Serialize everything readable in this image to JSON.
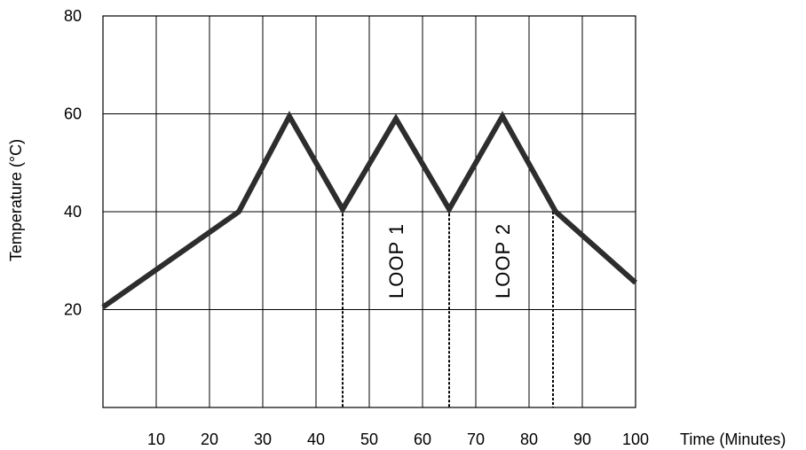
{
  "chart_data": {
    "type": "line",
    "xlabel": "Time (Minutes)",
    "ylabel": "Temperature (°C)",
    "xlim": [
      0,
      100
    ],
    "ylim": [
      0,
      80
    ],
    "x_ticks": [
      10,
      20,
      30,
      40,
      50,
      60,
      70,
      80,
      90,
      100
    ],
    "y_ticks": [
      20,
      40,
      60,
      80
    ],
    "grid": true,
    "series": [
      {
        "x": [
          0,
          25.5,
          35,
          45,
          55,
          65,
          75,
          85,
          100
        ],
        "y": [
          20.5,
          40,
          59.5,
          40.5,
          59,
          40.5,
          59.5,
          40,
          25.5
        ]
      }
    ],
    "markers": [
      {
        "x": 45,
        "y": 40.5
      },
      {
        "x": 65,
        "y": 40.5
      },
      {
        "x": 84.5,
        "y": 40
      }
    ],
    "annotations": [
      {
        "text": "LOOP 1",
        "x": 55,
        "y": 40
      },
      {
        "text": "LOOP 2",
        "x": 75,
        "y": 40
      }
    ],
    "colors": {
      "line": "#2d2d2d",
      "grid": "#000000",
      "dotted": "#000000"
    }
  }
}
